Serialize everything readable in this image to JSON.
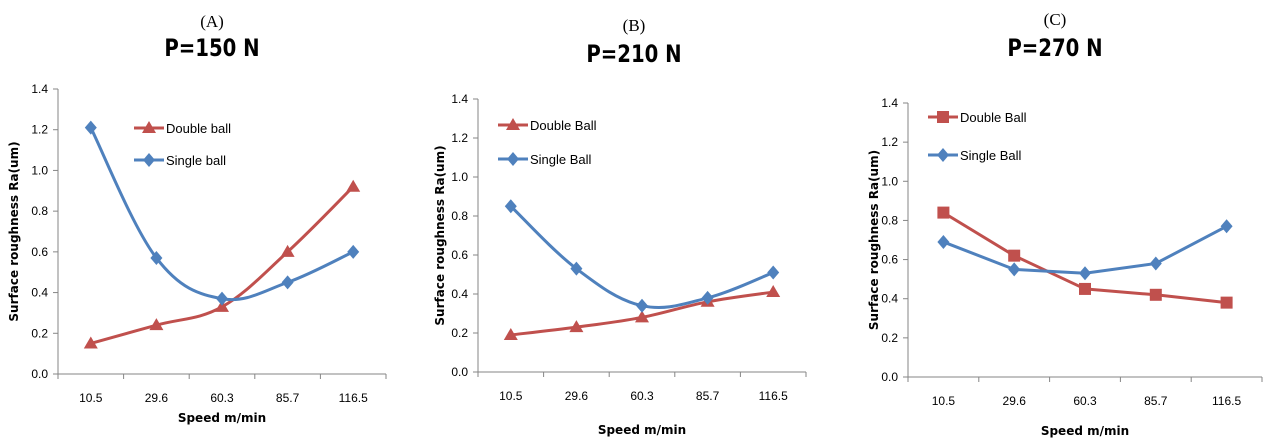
{
  "colors": {
    "double": "#c0504d",
    "single": "#4f81bd",
    "axis": "#868686"
  },
  "chart_data": [
    {
      "type": "line",
      "panel_label": "(A)",
      "title": "P=150 N",
      "xlabel": "Speed m/min",
      "ylabel": "Surface roughness Ra(um)",
      "categories": [
        "10.5",
        "29.6",
        "60.3",
        "85.7",
        "116.5"
      ],
      "ylim": [
        0,
        1.4
      ],
      "yticks": [
        "0.0",
        "0.2",
        "0.4",
        "0.6",
        "0.8",
        "1.0",
        "1.2",
        "1.4"
      ],
      "smooth": true,
      "legend_position": "top-right",
      "series": [
        {
          "name": "Double ball",
          "marker": "triangle",
          "color_key": "double",
          "values": [
            0.15,
            0.24,
            0.33,
            0.6,
            0.92
          ]
        },
        {
          "name": "Single ball",
          "marker": "diamond",
          "color_key": "single",
          "values": [
            1.21,
            0.57,
            0.37,
            0.45,
            0.6
          ]
        }
      ]
    },
    {
      "type": "line",
      "panel_label": "(B)",
      "title": "P=210 N",
      "xlabel": "Speed m/min",
      "ylabel": "Surface roughness Ra(um)",
      "categories": [
        "10.5",
        "29.6",
        "60.3",
        "85.7",
        "116.5"
      ],
      "ylim": [
        0,
        1.4
      ],
      "yticks": [
        "0.0",
        "0.2",
        "0.4",
        "0.6",
        "0.8",
        "1.0",
        "1.2",
        "1.4"
      ],
      "smooth": true,
      "legend_position": "top-left",
      "series": [
        {
          "name": "Double Ball",
          "marker": "triangle",
          "color_key": "double",
          "values": [
            0.19,
            0.23,
            0.28,
            0.36,
            0.41
          ]
        },
        {
          "name": "Single Ball",
          "marker": "diamond",
          "color_key": "single",
          "values": [
            0.85,
            0.53,
            0.34,
            0.38,
            0.51
          ]
        }
      ]
    },
    {
      "type": "line",
      "panel_label": "(C)",
      "title": "P=270 N",
      "xlabel": "Speed m/min",
      "ylabel": "Surface roughness Ra(um)",
      "categories": [
        "10.5",
        "29.6",
        "60.3",
        "85.7",
        "116.5"
      ],
      "ylim": [
        0,
        1.4
      ],
      "yticks": [
        "0.0",
        "0.2",
        "0.4",
        "0.6",
        "0.8",
        "1.0",
        "1.2",
        "1.4"
      ],
      "smooth": false,
      "legend_position": "top-left",
      "series": [
        {
          "name": "Double Ball",
          "marker": "square",
          "color_key": "double",
          "values": [
            0.84,
            0.62,
            0.45,
            0.42,
            0.38
          ]
        },
        {
          "name": "Single Ball",
          "marker": "diamond",
          "color_key": "single",
          "values": [
            0.69,
            0.55,
            0.53,
            0.58,
            0.77
          ]
        }
      ]
    }
  ]
}
